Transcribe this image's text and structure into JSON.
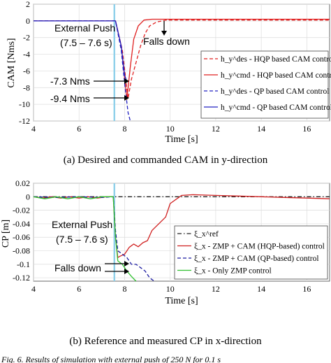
{
  "chart_data": [
    {
      "type": "line",
      "xlabel": "Time [s]",
      "ylabel": "CAM [Nms]",
      "xlim": [
        4,
        17
      ],
      "ylim": [
        -12,
        2
      ],
      "xticks": [
        "4",
        "6",
        "8",
        "10",
        "12",
        "14",
        "16"
      ],
      "yticks": [
        "2",
        "0",
        "-2",
        "-4",
        "-6",
        "-8",
        "-10",
        "-12"
      ],
      "grid": true,
      "legend_position": "bottom-right",
      "push_marker_x": 7.55,
      "series": [
        {
          "name": "h_y^des - HQP based CAM control",
          "color": "#e02020",
          "style": "dashed",
          "x": [
            4,
            7.5,
            7.6,
            7.9,
            8.15,
            8.3,
            8.5,
            8.7,
            8.9,
            9.1,
            9.4,
            9.8,
            17
          ],
          "y": [
            0,
            0,
            0,
            -3.5,
            -9.3,
            -7.0,
            -5.0,
            -3.0,
            -1.5,
            -0.6,
            -0.15,
            0.1,
            0.1
          ]
        },
        {
          "name": "h_y^cmd - HQP based CAM control",
          "color": "#e02020",
          "style": "solid",
          "x": [
            4,
            7.5,
            7.6,
            7.85,
            8.1,
            8.25,
            8.4,
            8.6,
            8.85,
            9.2,
            17
          ],
          "y": [
            0,
            0,
            0,
            -3.0,
            -9.4,
            -5.5,
            -2.2,
            -0.6,
            0.1,
            0.2,
            0.2
          ]
        },
        {
          "name": "h_y^des - QP based CAM control",
          "color": "#2020c0",
          "style": "dashed",
          "x": [
            4,
            7.5,
            7.6,
            7.85,
            8.0,
            8.15,
            8.25
          ],
          "y": [
            0,
            0,
            0,
            -3.5,
            -7.5,
            -11.0,
            -12.0
          ]
        },
        {
          "name": "h_y^cmd - QP based CAM control",
          "color": "#2020c0",
          "style": "solid",
          "x": [
            4,
            7.5,
            7.6,
            7.85,
            8.0,
            8.1
          ],
          "y": [
            0,
            0,
            0,
            -3.0,
            -6.5,
            -7.3
          ]
        }
      ],
      "annotations": [
        {
          "text": "External Push"
        },
        {
          "text": "(7.5 – 7.6 s)"
        },
        {
          "text": "Falls down"
        },
        {
          "text": "-7.3 Nms"
        },
        {
          "text": "-9.4 Nms"
        }
      ],
      "caption": "(a)  Desired and commanded CAM in y-direction"
    },
    {
      "type": "line",
      "xlabel": "Time [s]",
      "ylabel": "CP [m]",
      "xlim": [
        4,
        17
      ],
      "ylim": [
        -0.125,
        0.02
      ],
      "xticks": [
        "4",
        "6",
        "8",
        "10",
        "12",
        "14",
        "16"
      ],
      "yticks": [
        "0.02",
        "0",
        "-0.02",
        "-0.04",
        "-0.06",
        "-0.08",
        "-0.1",
        "-0.12"
      ],
      "grid": true,
      "legend_position": "bottom-right",
      "push_marker_x": 7.55,
      "series": [
        {
          "name": "ξ_x^ref",
          "color": "#222222",
          "style": "dashdot",
          "x": [
            4,
            17
          ],
          "y": [
            0,
            0
          ]
        },
        {
          "name": "ξ_x - ZMP + CAM (HQP-based) control",
          "color": "#d02020",
          "style": "solid",
          "x": [
            4,
            4.4,
            4.8,
            5.2,
            5.6,
            6.0,
            6.4,
            6.8,
            7.2,
            7.5,
            7.6,
            7.7,
            7.8,
            8.0,
            8.2,
            8.4,
            8.6,
            8.8,
            9.0,
            9.2,
            9.5,
            9.8,
            10.0,
            10.5,
            11,
            12,
            13,
            14,
            15,
            16,
            17
          ],
          "y": [
            0,
            -0.002,
            0,
            -0.002,
            0,
            -0.002,
            0,
            -0.002,
            0,
            0,
            -0.06,
            -0.09,
            -0.088,
            -0.085,
            -0.075,
            -0.07,
            -0.074,
            -0.068,
            -0.065,
            -0.05,
            -0.04,
            -0.03,
            -0.01,
            0.002,
            0.003,
            0.002,
            0.001,
            0.0,
            -0.001,
            -0.002,
            -0.003
          ]
        },
        {
          "name": "ξ_x - ZMP + CAM (QP-based) control",
          "color": "#1a1aa0",
          "style": "dashed",
          "x": [
            4,
            5,
            6,
            7,
            7.5,
            7.6,
            7.7,
            7.9,
            8.1,
            8.3,
            8.5,
            8.7,
            8.9,
            9.1,
            9.3
          ],
          "y": [
            0,
            -0.001,
            0,
            -0.001,
            0,
            -0.05,
            -0.08,
            -0.085,
            -0.09,
            -0.1,
            -0.1,
            -0.105,
            -0.11,
            -0.12,
            -0.125
          ]
        },
        {
          "name": "ξ_x - Only ZMP control",
          "color": "#30c030",
          "style": "solid",
          "x": [
            4,
            4.5,
            5,
            5.5,
            6,
            6.5,
            7,
            7.5,
            7.6,
            7.7,
            7.9,
            8.1,
            8.3,
            8.5
          ],
          "y": [
            0,
            -0.003,
            0,
            -0.003,
            0,
            -0.003,
            0,
            0,
            -0.06,
            -0.095,
            -0.1,
            -0.11,
            -0.118,
            -0.125
          ]
        }
      ],
      "annotations": [
        {
          "text": "External Push"
        },
        {
          "text": "(7.5 – 7.6 s)"
        },
        {
          "text": "Falls down"
        }
      ],
      "caption": "(b)  Reference and measured CP in x-direction"
    }
  ],
  "footer_text": "Fig. 6.    Results of simulation with external push of 250 N for 0.1 s"
}
